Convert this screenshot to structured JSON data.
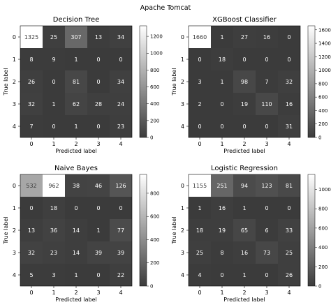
{
  "figure_title": "Apache Tomcat",
  "colormap": {
    "low": "#3b3b3b",
    "high": "#ffffff"
  },
  "chart_data": [
    {
      "type": "heatmap",
      "title": "Decision Tree",
      "xlabel": "Predicted label",
      "ylabel": "True label",
      "x_ticks": [
        "0",
        "1",
        "2",
        "3",
        "4"
      ],
      "y_ticks": [
        "0",
        "1",
        "2",
        "3",
        "4"
      ],
      "matrix": [
        [
          1325,
          25,
          307,
          13,
          34
        ],
        [
          8,
          9,
          1,
          0,
          0
        ],
        [
          26,
          0,
          81,
          0,
          34
        ],
        [
          32,
          1,
          62,
          28,
          24
        ],
        [
          7,
          0,
          1,
          0,
          23
        ]
      ],
      "colorbar": {
        "range": [
          0,
          1325
        ],
        "ticks": [
          0,
          200,
          400,
          600,
          800,
          1000,
          1200
        ]
      }
    },
    {
      "type": "heatmap",
      "title": "XGBoost Classifier",
      "xlabel": "Predicted label",
      "ylabel": "True label",
      "x_ticks": [
        "0",
        "1",
        "2",
        "3",
        "4"
      ],
      "y_ticks": [
        "0",
        "1",
        "2",
        "3",
        "4"
      ],
      "matrix": [
        [
          1660,
          1,
          27,
          16,
          0
        ],
        [
          0,
          18,
          0,
          0,
          0
        ],
        [
          3,
          1,
          98,
          7,
          32
        ],
        [
          2,
          0,
          19,
          110,
          16
        ],
        [
          0,
          0,
          0,
          0,
          31
        ]
      ],
      "colorbar": {
        "range": [
          0,
          1660
        ],
        "ticks": [
          0,
          200,
          400,
          600,
          800,
          1000,
          1200,
          1400,
          1600
        ]
      }
    },
    {
      "type": "heatmap",
      "title": "Naive Bayes",
      "xlabel": "Predicted label",
      "ylabel": "True label",
      "x_ticks": [
        "0",
        "1",
        "2",
        "3",
        "4"
      ],
      "y_ticks": [
        "0",
        "1",
        "2",
        "3",
        "4"
      ],
      "matrix": [
        [
          532,
          962,
          38,
          46,
          126
        ],
        [
          0,
          18,
          0,
          0,
          0
        ],
        [
          13,
          36,
          14,
          1,
          77
        ],
        [
          32,
          23,
          14,
          39,
          39
        ],
        [
          5,
          3,
          1,
          0,
          22
        ]
      ],
      "colorbar": {
        "range": [
          0,
          962
        ],
        "ticks": [
          0,
          200,
          400,
          600,
          800
        ]
      }
    },
    {
      "type": "heatmap",
      "title": "Logistic Regression",
      "xlabel": "Predicted label",
      "ylabel": "True label",
      "x_ticks": [
        "0",
        "1",
        "2",
        "3",
        "4"
      ],
      "y_ticks": [
        "0",
        "1",
        "2",
        "3",
        "4"
      ],
      "matrix": [
        [
          1155,
          251,
          94,
          123,
          81
        ],
        [
          1,
          16,
          1,
          0,
          0
        ],
        [
          18,
          19,
          65,
          6,
          33
        ],
        [
          25,
          8,
          16,
          73,
          25
        ],
        [
          4,
          0,
          1,
          0,
          26
        ]
      ],
      "colorbar": {
        "range": [
          0,
          1155
        ],
        "ticks": [
          0,
          200,
          400,
          600,
          800,
          1000
        ]
      }
    }
  ]
}
